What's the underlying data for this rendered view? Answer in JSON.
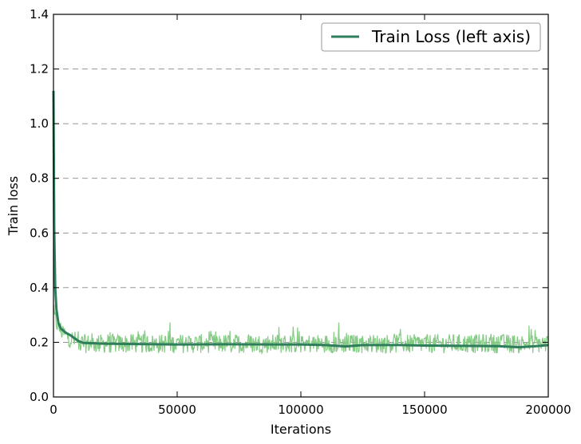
{
  "chart_data": {
    "type": "line",
    "xlabel": "Iterations",
    "ylabel": "Train loss",
    "xlim": [
      0,
      200000
    ],
    "ylim": [
      0.0,
      1.4
    ],
    "x_ticks": [
      0,
      50000,
      100000,
      150000,
      200000
    ],
    "x_tick_labels": [
      "0",
      "50000",
      "100000",
      "150000",
      "200000"
    ],
    "y_ticks": [
      0.0,
      0.2,
      0.4,
      0.6,
      0.8,
      1.0,
      1.2,
      1.4
    ],
    "y_tick_labels": [
      "0.0",
      "0.2",
      "0.4",
      "0.6",
      "0.8",
      "1.0",
      "1.2",
      "1.4"
    ],
    "grid": "horizontal-dashed",
    "legend": "top-right",
    "raw_band": {
      "color": "#7ec87e",
      "center": 0.195,
      "half_range": 0.035,
      "start_peak": 0.3
    },
    "series": [
      {
        "name": "Train Loss (left axis)",
        "color": "#2e7d5b",
        "x": [
          0,
          300,
          700,
          1200,
          2000,
          3000,
          5000,
          7000,
          10000,
          12000,
          20000,
          30000,
          50000,
          70000,
          90000,
          100000,
          110000,
          118000,
          125000,
          140000,
          150000,
          165000,
          180000,
          188000,
          195000,
          200000
        ],
        "y": [
          1.12,
          0.62,
          0.4,
          0.32,
          0.27,
          0.25,
          0.235,
          0.225,
          0.205,
          0.198,
          0.195,
          0.194,
          0.192,
          0.193,
          0.192,
          0.192,
          0.19,
          0.185,
          0.19,
          0.19,
          0.188,
          0.187,
          0.186,
          0.182,
          0.186,
          0.19
        ]
      }
    ]
  }
}
